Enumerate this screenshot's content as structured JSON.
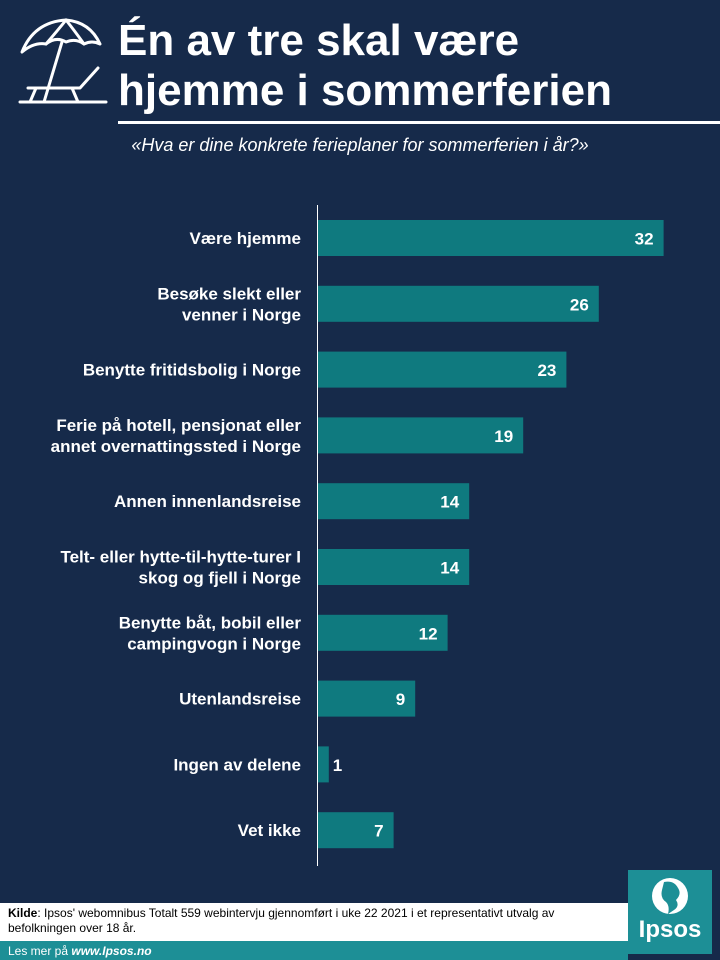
{
  "header": {
    "title_line1": "Én av tre skal være",
    "title_line2": "hjemme i sommerferien",
    "subtitle": "«Hva er dine konkrete ferieplaner for sommerferien i år?»"
  },
  "colors": {
    "background": "#162a4a",
    "bar": "#0f7a7f",
    "accent": "#1d8f96",
    "text": "#ffffff"
  },
  "icons": {
    "header": "beach-umbrella-chair-icon"
  },
  "chart_data": {
    "type": "bar",
    "orientation": "horizontal",
    "title": "",
    "xlabel": "",
    "ylabel": "",
    "xlim": [
      0,
      34
    ],
    "grid": false,
    "categories": [
      [
        "Være hjemme"
      ],
      [
        "Besøke slekt eller",
        "venner i Norge"
      ],
      [
        "Benytte fritidsbolig i Norge"
      ],
      [
        "Ferie på hotell, pensjonat eller",
        "annet overnattingssted i Norge"
      ],
      [
        "Annen innenlandsreise"
      ],
      [
        "Telt- eller hytte-til-hytte-turer I",
        "skog og fjell i Norge"
      ],
      [
        "Benytte båt, bobil eller",
        "campingvogn i Norge"
      ],
      [
        "Utenlandsreise"
      ],
      [
        "Ingen av delene"
      ],
      [
        "Vet ikke"
      ]
    ],
    "values": [
      32,
      26,
      23,
      19,
      14,
      14,
      12,
      9,
      1,
      7
    ],
    "value_labels": [
      "32",
      "26",
      "23",
      "19",
      "14",
      "14",
      "12",
      "9",
      "1",
      "7"
    ]
  },
  "footer": {
    "source_label": "Kilde",
    "source_text": ": Ipsos' webomnibus Totalt 559 webintervju gjennomført i uke 22 2021 i et representativt utvalg av befolkningen over 18 år.",
    "readmore_prefix": "Les mer på ",
    "readmore_link": "www.Ipsos.no",
    "logo_text": "Ipsos"
  }
}
